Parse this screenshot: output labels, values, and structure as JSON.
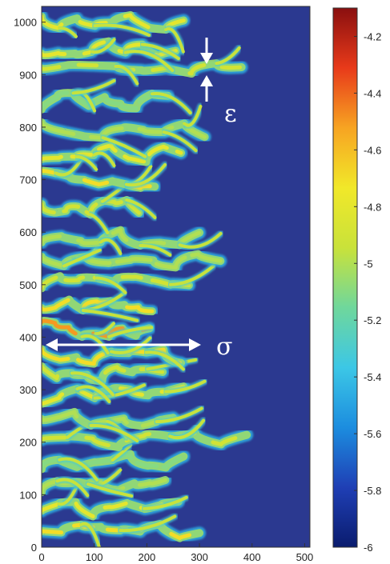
{
  "chart_data": {
    "type": "heatmap",
    "title": "",
    "xlabel": "",
    "ylabel": "",
    "xlim": [
      0,
      510
    ],
    "ylim": [
      0,
      1030
    ],
    "x_ticks": [
      "0",
      "100",
      "200",
      "300",
      "400",
      "500"
    ],
    "y_ticks": [
      "0",
      "100",
      "200",
      "300",
      "400",
      "500",
      "600",
      "700",
      "800",
      "900",
      "1000"
    ],
    "colorbar": {
      "range": [
        -6,
        -4.1
      ],
      "ticks": [
        "-6",
        "-5.8",
        "-5.6",
        "-5.4",
        "-5.2",
        "-5",
        "-4.8",
        "-4.6",
        "-4.4",
        "-4.2"
      ],
      "colormap": "jet",
      "stops": [
        "#0a1c6e",
        "#1f3fb5",
        "#1c8ddf",
        "#3cc7e6",
        "#6fd79c",
        "#c9e23a",
        "#f1e829",
        "#f7a422",
        "#e83a1a",
        "#8a0f0f"
      ]
    },
    "background_color": "#2b3990",
    "annotations": [
      {
        "symbol": "ε",
        "kind": "thickness",
        "x": 310,
        "y": 900
      },
      {
        "symbol": "σ",
        "kind": "span",
        "x_from": 0,
        "x_to": 305,
        "y": 385
      }
    ],
    "fingers": [
      {
        "y": 30,
        "length": 300,
        "level": -4.7
      },
      {
        "y": 75,
        "length": 260,
        "level": -4.8
      },
      {
        "y": 120,
        "length": 235,
        "level": -5.0
      },
      {
        "y": 165,
        "length": 270,
        "level": -5.1
      },
      {
        "y": 200,
        "length": 390,
        "level": -4.9
      },
      {
        "y": 245,
        "length": 250,
        "level": -5.0
      },
      {
        "y": 290,
        "length": 270,
        "level": -4.8
      },
      {
        "y": 330,
        "length": 230,
        "level": -4.9
      },
      {
        "y": 365,
        "length": 265,
        "level": -4.7
      },
      {
        "y": 415,
        "length": 205,
        "level": -4.5
      },
      {
        "y": 455,
        "length": 210,
        "level": -4.7
      },
      {
        "y": 500,
        "length": 280,
        "level": -4.9
      },
      {
        "y": 545,
        "length": 340,
        "level": -5.0
      },
      {
        "y": 590,
        "length": 300,
        "level": -5.0
      },
      {
        "y": 645,
        "length": 185,
        "level": -4.9
      },
      {
        "y": 700,
        "length": 215,
        "level": -4.7
      },
      {
        "y": 750,
        "length": 265,
        "level": -4.8
      },
      {
        "y": 795,
        "length": 310,
        "level": -5.0
      },
      {
        "y": 850,
        "length": 240,
        "level": -5.1
      },
      {
        "y": 905,
        "length": 380,
        "level": -4.9
      },
      {
        "y": 950,
        "length": 255,
        "level": -4.8
      },
      {
        "y": 1000,
        "length": 270,
        "level": -4.8
      }
    ]
  }
}
